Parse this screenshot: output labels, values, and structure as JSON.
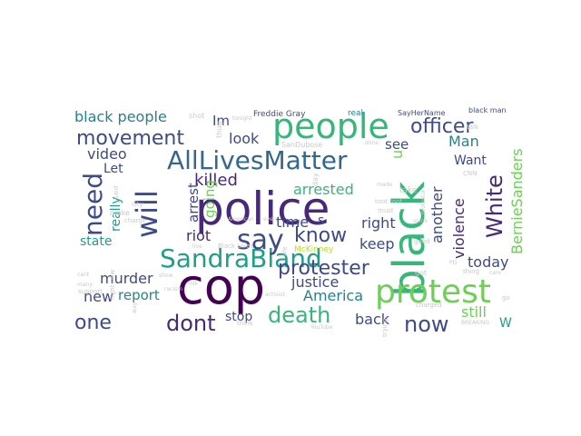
{
  "palette": {
    "dark_purple": "#440154",
    "indigo": "#482878",
    "navy": "#3e4a89",
    "slate": "#31688e",
    "teal": "#26828e",
    "sea": "#1f9e89",
    "green": "#35b779",
    "lime": "#6ece58",
    "yellow_green": "#b5de2b",
    "light_gray": "#c8c8c8"
  },
  "words": [
    {
      "text": "police",
      "color": "indigo"
    },
    {
      "text": "cop",
      "color": "dark_purple"
    },
    {
      "text": "black",
      "color": "green"
    },
    {
      "text": "people",
      "color": "green"
    },
    {
      "text": "protest",
      "color": "lime"
    },
    {
      "text": "AllLivesMatter",
      "color": "slate"
    },
    {
      "text": "SandraBland",
      "color": "sea"
    },
    {
      "text": "say",
      "color": "navy"
    },
    {
      "text": "will",
      "color": "navy"
    },
    {
      "text": "officer",
      "color": "navy"
    },
    {
      "text": "movement",
      "color": "navy"
    },
    {
      "text": "protester",
      "color": "navy"
    },
    {
      "text": "death",
      "color": "green"
    },
    {
      "text": "now",
      "color": "navy"
    },
    {
      "text": "dont",
      "color": "indigo"
    },
    {
      "text": "need",
      "color": "navy"
    },
    {
      "text": "one",
      "color": "navy"
    },
    {
      "text": "know",
      "color": "navy"
    },
    {
      "text": "White",
      "color": "indigo"
    },
    {
      "text": "black people",
      "color": "teal"
    },
    {
      "text": "BernieSanders",
      "color": "lime"
    },
    {
      "text": "video",
      "color": "navy"
    },
    {
      "text": "killed",
      "color": "indigo"
    },
    {
      "text": "arrested",
      "color": "green"
    },
    {
      "text": "Im",
      "color": "navy"
    },
    {
      "text": "look",
      "color": "navy"
    },
    {
      "text": "see",
      "color": "navy"
    },
    {
      "text": "Man",
      "color": "teal"
    },
    {
      "text": "Let",
      "color": "navy"
    },
    {
      "text": "Want",
      "color": "navy"
    },
    {
      "text": "time",
      "color": "navy"
    },
    {
      "text": "right",
      "color": "navy"
    },
    {
      "text": "keep",
      "color": "navy"
    },
    {
      "text": "violence",
      "color": "indigo"
    },
    {
      "text": "another",
      "color": "navy"
    },
    {
      "text": "today",
      "color": "navy"
    },
    {
      "text": "still",
      "color": "lime"
    },
    {
      "text": "riot",
      "color": "indigo"
    },
    {
      "text": "state",
      "color": "sea"
    },
    {
      "text": "murder",
      "color": "navy"
    },
    {
      "text": "report",
      "color": "teal"
    },
    {
      "text": "justice",
      "color": "navy"
    },
    {
      "text": "America",
      "color": "teal"
    },
    {
      "text": "new",
      "color": "navy"
    },
    {
      "text": "back",
      "color": "navy"
    },
    {
      "text": "stop",
      "color": "navy"
    },
    {
      "text": "really",
      "color": "sea"
    },
    {
      "text": "going",
      "color": "lime"
    },
    {
      "text": "arrest",
      "color": "navy"
    },
    {
      "text": "s",
      "color": "navy"
    },
    {
      "text": "McKinney",
      "color": "yellow_green"
    },
    {
      "text": "W",
      "color": "sea"
    },
    {
      "text": "u",
      "color": "lime"
    },
    {
      "text": "Freddie Gray",
      "color": "navy"
    },
    {
      "text": "real",
      "color": "teal"
    },
    {
      "text": "SayHerName",
      "color": "navy"
    },
    {
      "text": "black man",
      "color": "navy"
    },
    {
      "text": "shot",
      "color": "light_gray"
    },
    {
      "text": "tonight",
      "color": "light_gray"
    },
    {
      "text": "thug",
      "color": "light_gray"
    },
    {
      "text": "SanDubose",
      "color": "light_gray"
    },
    {
      "text": "done",
      "color": "light_gray"
    },
    {
      "text": "talk",
      "color": "light_gray"
    },
    {
      "text": "CNN",
      "color": "light_gray"
    },
    {
      "text": "said",
      "color": "light_gray"
    },
    {
      "text": "city",
      "color": "light_gray"
    },
    {
      "text": "make",
      "color": "light_gray"
    },
    {
      "text": "charge",
      "color": "light_gray"
    },
    {
      "text": "day",
      "color": "light_gray"
    },
    {
      "text": "must",
      "color": "light_gray"
    },
    {
      "text": "made",
      "color": "light_gray"
    },
    {
      "text": "take",
      "color": "light_gray"
    },
    {
      "text": "protestor",
      "color": "light_gray"
    },
    {
      "text": "spine",
      "color": "light_gray"
    },
    {
      "text": "American",
      "color": "light_gray"
    },
    {
      "text": "even",
      "color": "light_gray"
    },
    {
      "text": "Black Lives",
      "color": "light_gray"
    },
    {
      "text": "good",
      "color": "light_gray"
    },
    {
      "text": "life",
      "color": "light_gray"
    },
    {
      "text": "live",
      "color": "light_gray"
    },
    {
      "text": "cant",
      "color": "light_gray"
    },
    {
      "text": "show",
      "color": "light_gray"
    },
    {
      "text": "many",
      "color": "light_gray"
    },
    {
      "text": "support",
      "color": "light_gray"
    },
    {
      "text": "racism",
      "color": "light_gray"
    },
    {
      "text": "folk",
      "color": "light_gray"
    },
    {
      "text": "way",
      "color": "light_gray"
    },
    {
      "text": "right now",
      "color": "light_gray"
    },
    {
      "text": "activist",
      "color": "light_gray"
    },
    {
      "text": "think",
      "color": "light_gray"
    },
    {
      "text": "care",
      "color": "light_gray"
    },
    {
      "text": "got",
      "color": "light_gray"
    },
    {
      "text": "charged",
      "color": "light_gray"
    },
    {
      "text": "thing",
      "color": "light_gray"
    },
    {
      "text": "PD",
      "color": "light_gray"
    },
    {
      "text": "go",
      "color": "light_gray"
    },
    {
      "text": "trying",
      "color": "light_gray"
    },
    {
      "text": "YouTube",
      "color": "light_gray"
    },
    {
      "text": "BREAKING",
      "color": "light_gray"
    },
    {
      "text": "toot toot",
      "color": "light_gray"
    }
  ]
}
